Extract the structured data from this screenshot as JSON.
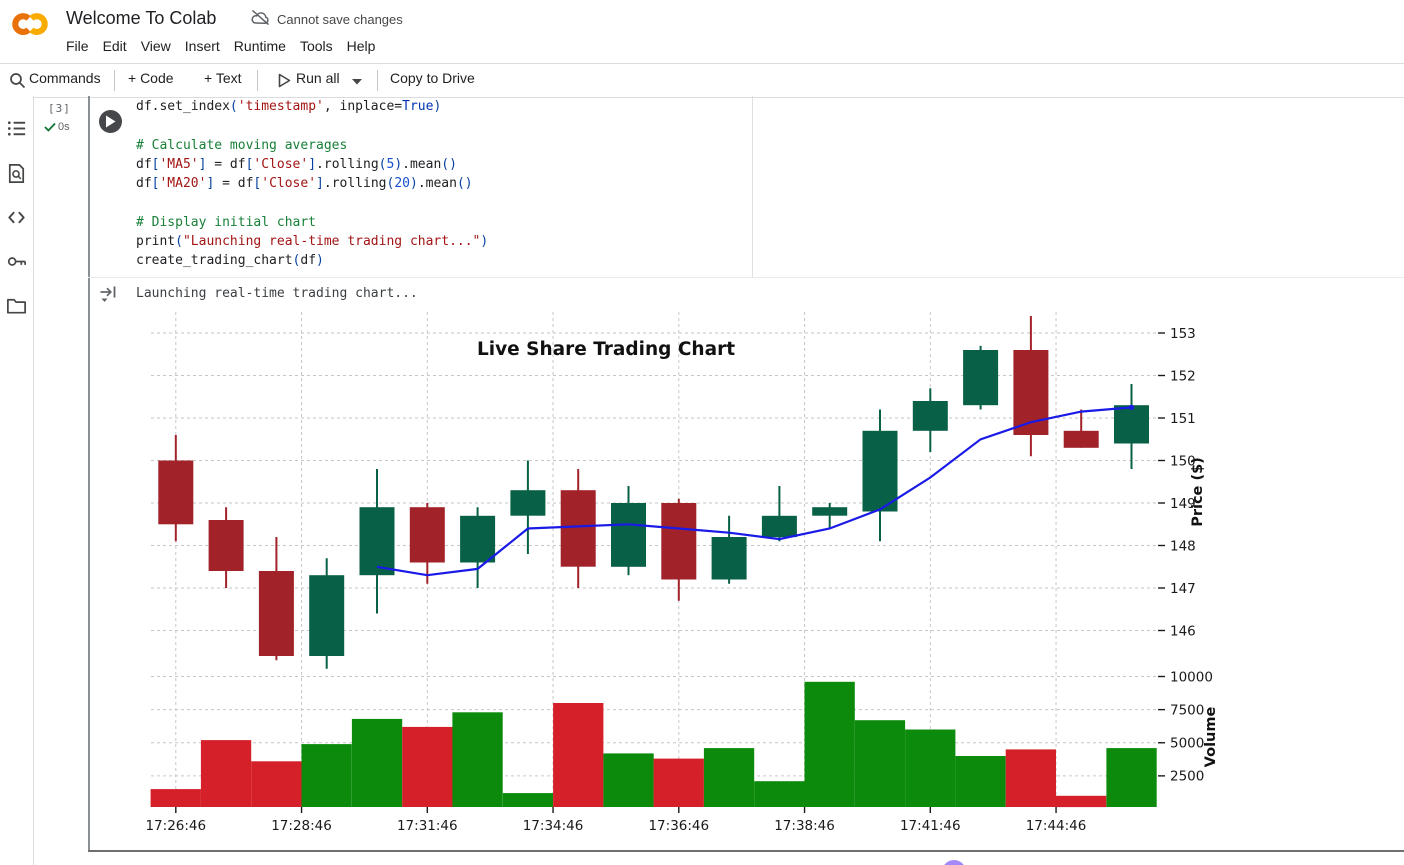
{
  "header": {
    "title": "Welcome To Colab",
    "save_status": "Cannot save changes",
    "menu": [
      "File",
      "Edit",
      "View",
      "Insert",
      "Runtime",
      "Tools",
      "Help"
    ]
  },
  "toolbar": {
    "commands": "Commands",
    "add_code": "+ Code",
    "add_text": "+ Text",
    "run_all": "Run all",
    "copy_to_drive": "Copy to Drive"
  },
  "sidebar": {
    "icons": [
      "table-of-contents",
      "find-in-document",
      "code-snippets",
      "secrets",
      "files"
    ]
  },
  "cell": {
    "execution_count": "[3]",
    "execution_time": "0s",
    "code_lines": [
      [
        [
          "df.set_index",
          "d"
        ],
        [
          "(",
          "p"
        ],
        [
          "'timestamp'",
          "s"
        ],
        [
          ", inplace=",
          "d"
        ],
        [
          "True",
          "k"
        ],
        [
          ")",
          "p"
        ]
      ],
      [],
      [
        [
          "# Calculate moving averages",
          "c"
        ]
      ],
      [
        [
          "df",
          "d"
        ],
        [
          "[",
          "p"
        ],
        [
          "'MA5'",
          "s"
        ],
        [
          "]",
          "p"
        ],
        [
          " = df",
          "d"
        ],
        [
          "[",
          "p"
        ],
        [
          "'Close'",
          "s"
        ],
        [
          "]",
          "p"
        ],
        [
          ".rolling",
          "d"
        ],
        [
          "(",
          "p"
        ],
        [
          "5",
          "n"
        ],
        [
          ")",
          "p"
        ],
        [
          ".mean",
          "d"
        ],
        [
          "(",
          "p"
        ],
        [
          ")",
          "p"
        ]
      ],
      [
        [
          "df",
          "d"
        ],
        [
          "[",
          "p"
        ],
        [
          "'MA20'",
          "s"
        ],
        [
          "]",
          "p"
        ],
        [
          " = df",
          "d"
        ],
        [
          "[",
          "p"
        ],
        [
          "'Close'",
          "s"
        ],
        [
          "]",
          "p"
        ],
        [
          ".rolling",
          "d"
        ],
        [
          "(",
          "p"
        ],
        [
          "20",
          "n"
        ],
        [
          ")",
          "p"
        ],
        [
          ".mean",
          "d"
        ],
        [
          "(",
          "p"
        ],
        [
          ")",
          "p"
        ]
      ],
      [],
      [
        [
          "# Display initial chart",
          "c"
        ]
      ],
      [
        [
          "print",
          "d"
        ],
        [
          "(",
          "p"
        ],
        [
          "\"Launching real-time trading chart...\"",
          "s"
        ],
        [
          ")",
          "p"
        ]
      ],
      [
        [
          "create_trading_chart",
          "d"
        ],
        [
          "(",
          "p"
        ],
        [
          "df",
          "d"
        ],
        [
          ")",
          "p"
        ]
      ]
    ]
  },
  "output": {
    "text": "Launching real-time trading chart..."
  },
  "chart_data": {
    "type": "candlestick+volume",
    "title": "Live Share Trading Chart",
    "price_axis": {
      "label": "Price ($)",
      "ticks": [
        146,
        147,
        148,
        149,
        150,
        151,
        152,
        153
      ],
      "range": [
        145.0,
        153.5
      ],
      "side": "right"
    },
    "volume_axis": {
      "label": "Volume",
      "ticks": [
        2500,
        5000,
        7500,
        10000
      ],
      "range": [
        0,
        10400
      ],
      "side": "right"
    },
    "x_ticks": [
      {
        "i": 0,
        "label": "17:26:46"
      },
      {
        "i": 2.5,
        "label": "17:28:46"
      },
      {
        "i": 5,
        "label": "17:31:46"
      },
      {
        "i": 7.5,
        "label": "17:34:46"
      },
      {
        "i": 10,
        "label": "17:36:46"
      },
      {
        "i": 12.5,
        "label": "17:38:46"
      },
      {
        "i": 15,
        "label": "17:41:46"
      },
      {
        "i": 17.5,
        "label": "17:44:46"
      }
    ],
    "candles": [
      {
        "t": "17:26:46",
        "o": 150.0,
        "h": 150.6,
        "l": 148.1,
        "c": 148.5,
        "v": 1500
      },
      {
        "t": "17:27:46",
        "o": 148.6,
        "h": 148.9,
        "l": 147.0,
        "c": 147.4,
        "v": 5200
      },
      {
        "t": "17:28:46",
        "o": 147.4,
        "h": 148.2,
        "l": 145.3,
        "c": 145.4,
        "v": 3600
      },
      {
        "t": "17:29:46",
        "o": 145.4,
        "h": 147.7,
        "l": 145.1,
        "c": 147.3,
        "v": 4900
      },
      {
        "t": "17:30:46",
        "o": 147.3,
        "h": 149.8,
        "l": 146.4,
        "c": 148.9,
        "v": 6800
      },
      {
        "t": "17:31:46",
        "o": 148.9,
        "h": 149.0,
        "l": 147.1,
        "c": 147.6,
        "v": 6200
      },
      {
        "t": "17:32:46",
        "o": 147.6,
        "h": 148.9,
        "l": 147.0,
        "c": 148.7,
        "v": 7300
      },
      {
        "t": "17:33:46",
        "o": 148.7,
        "h": 150.0,
        "l": 147.8,
        "c": 149.3,
        "v": 1200
      },
      {
        "t": "17:34:46",
        "o": 149.3,
        "h": 149.8,
        "l": 147.0,
        "c": 147.5,
        "v": 8000
      },
      {
        "t": "17:35:46",
        "o": 147.5,
        "h": 149.4,
        "l": 147.3,
        "c": 149.0,
        "v": 4200
      },
      {
        "t": "17:36:46",
        "o": 149.0,
        "h": 149.1,
        "l": 146.7,
        "c": 147.2,
        "v": 3800
      },
      {
        "t": "17:37:46",
        "o": 147.2,
        "h": 148.7,
        "l": 147.1,
        "c": 148.2,
        "v": 4600
      },
      {
        "t": "17:38:46",
        "o": 148.2,
        "h": 149.4,
        "l": 148.1,
        "c": 148.7,
        "v": 2100
      },
      {
        "t": "17:39:46",
        "o": 148.7,
        "h": 149.0,
        "l": 148.4,
        "c": 148.9,
        "v": 9600
      },
      {
        "t": "17:40:46",
        "o": 148.8,
        "h": 151.2,
        "l": 148.1,
        "c": 150.7,
        "v": 6700
      },
      {
        "t": "17:41:46",
        "o": 150.7,
        "h": 151.7,
        "l": 150.2,
        "c": 151.4,
        "v": 6000
      },
      {
        "t": "17:42:46",
        "o": 151.3,
        "h": 152.7,
        "l": 151.2,
        "c": 152.6,
        "v": 4000
      },
      {
        "t": "17:43:46",
        "o": 152.6,
        "h": 153.4,
        "l": 150.1,
        "c": 150.6,
        "v": 4500
      },
      {
        "t": "17:44:46",
        "o": 150.7,
        "h": 151.2,
        "l": 150.3,
        "c": 150.3,
        "v": 1000
      },
      {
        "t": "17:45:46",
        "o": 150.4,
        "h": 151.8,
        "l": 149.8,
        "c": 151.3,
        "v": 4600
      }
    ],
    "ma5": {
      "start_index": 4,
      "values": [
        147.5,
        147.3,
        147.45,
        148.4,
        148.45,
        148.5,
        148.4,
        148.3,
        148.15,
        148.4,
        148.85,
        149.6,
        150.5,
        150.9,
        151.15,
        151.25
      ]
    },
    "colors": {
      "up": "#086147",
      "down": "#a2222a",
      "vol_up": "#0b8a0b",
      "vol_down": "#d62029",
      "ma": "#1a1ae8",
      "grid": "#c6c6c6"
    }
  }
}
